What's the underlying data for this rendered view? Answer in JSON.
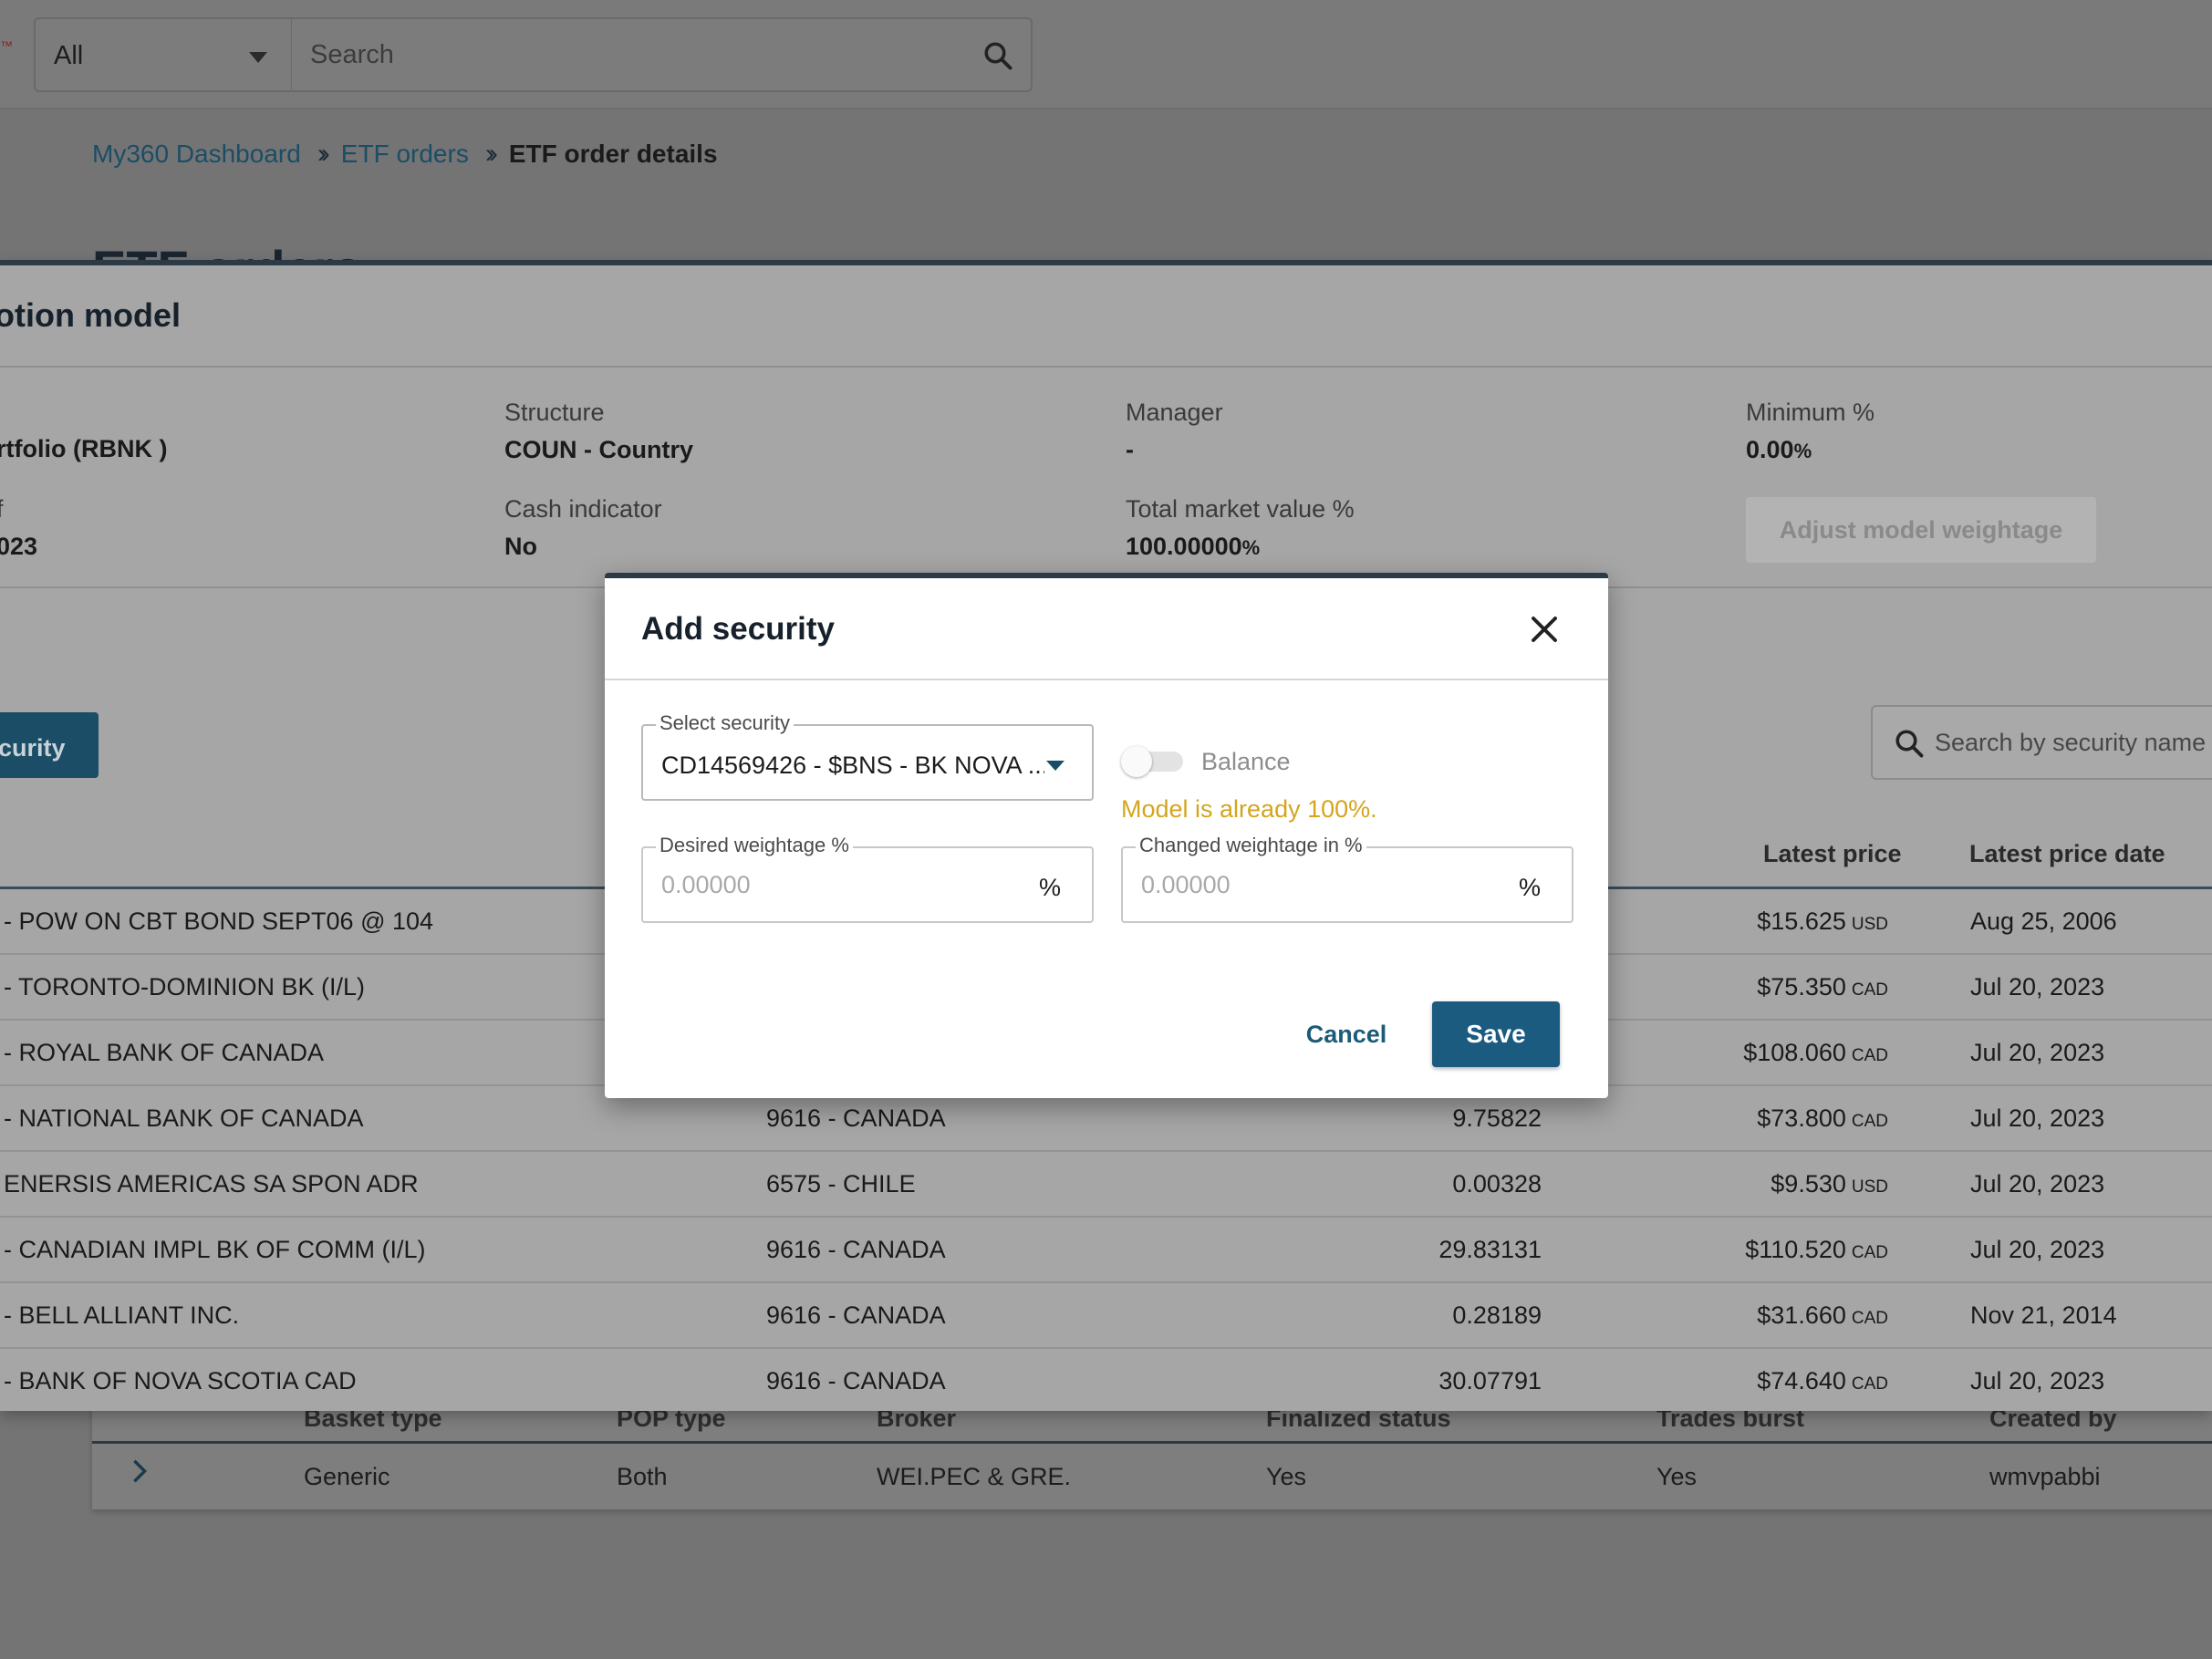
{
  "header": {
    "filter_value": "All",
    "search_placeholder": "Search"
  },
  "breadcrumb": {
    "items": [
      "My360 Dashboard",
      "ETF orders"
    ],
    "current": "ETF order details"
  },
  "page": {
    "title": "ETF orders"
  },
  "model": {
    "title": "otion model",
    "fields": {
      "portfolio_value": "rtfolio (RBNK )",
      "asof_label": "f",
      "asof_value": "023",
      "structure_label": "Structure",
      "structure_value": "COUN - Country",
      "cash_label": "Cash indicator",
      "cash_value": "No",
      "manager_label": "Manager",
      "manager_value": "-",
      "tmv_label": "Total market value %",
      "tmv_value": "100.00000",
      "tmv_unit": "%",
      "min_label": "Minimum %",
      "min_value": "0.00",
      "min_unit": "%"
    },
    "adjust_button": "Adjust model weightage",
    "add_security_button": "curity",
    "table_search_placeholder": "Search by security name",
    "columns": {
      "latest_price": "Latest price",
      "latest_price_date": "Latest price date"
    },
    "rows": [
      {
        "name": "- POW ON CBT BOND SEPT06 @ 104",
        "country": "",
        "weight": "",
        "price": "$15.625",
        "currency": "USD",
        "date": "Aug 25, 2006"
      },
      {
        "name": "- TORONTO-DOMINION BK (I/L)",
        "country": "",
        "weight": "",
        "price": "$75.350",
        "currency": "CAD",
        "date": "Jul 20, 2023"
      },
      {
        "name": "- ROYAL BANK OF CANADA",
        "country": "",
        "weight": "",
        "price": "$108.060",
        "currency": "CAD",
        "date": "Jul 20, 2023"
      },
      {
        "name": "- NATIONAL BANK OF CANADA",
        "country": "9616 - CANADA",
        "weight": "9.75822",
        "price": "$73.800",
        "currency": "CAD",
        "date": "Jul 20, 2023"
      },
      {
        "name": "ENERSIS AMERICAS SA SPON ADR",
        "country": "6575 - CHILE",
        "weight": "0.00328",
        "price": "$9.530",
        "currency": "USD",
        "date": "Jul 20, 2023"
      },
      {
        "name": "- CANADIAN IMPL BK OF COMM (I/L)",
        "country": "9616 - CANADA",
        "weight": "29.83131",
        "price": "$110.520",
        "currency": "CAD",
        "date": "Jul 20, 2023"
      },
      {
        "name": "- BELL ALLIANT INC.",
        "country": "9616 - CANADA",
        "weight": "0.28189",
        "price": "$31.660",
        "currency": "CAD",
        "date": "Nov 21, 2014"
      },
      {
        "name": "- BANK OF NOVA SCOTIA CAD",
        "country": "9616 - CANADA",
        "weight": "30.07791",
        "price": "$74.640",
        "currency": "CAD",
        "date": "Jul 20, 2023"
      }
    ]
  },
  "basket": {
    "headers": [
      "Basket type",
      "POP type",
      "Broker",
      "Finalized status",
      "Trades burst",
      "Created by"
    ],
    "row": [
      "Generic",
      "Both",
      "WEI.PEC & GRE.",
      "Yes",
      "Yes",
      "wmvpabbi"
    ]
  },
  "modal": {
    "title": "Add security",
    "select_label": "Select security",
    "select_value": "CD14569426 - $BNS - BK NOVA ...",
    "balance_label": "Balance",
    "balance_on": false,
    "warning": "Model is already 100%.",
    "desired_label": "Desired weightage %",
    "desired_placeholder": "0.00000",
    "changed_label": "Changed weightage in %",
    "changed_placeholder": "0.00000",
    "pct_symbol": "%",
    "cancel": "Cancel",
    "save": "Save"
  },
  "colors": {
    "accent": "#1b5b80",
    "warning": "#d4a51e",
    "dark_border": "#2c3a46"
  }
}
